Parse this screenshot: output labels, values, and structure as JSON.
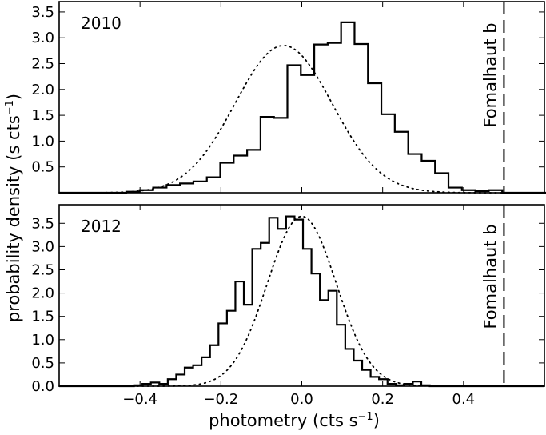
{
  "chart_data": {
    "type": "histogram",
    "ylabel": "probability density (s cts",
    "ylabel_sup": "−1",
    "ylabel_end": ")",
    "xlabel": "photometry (cts s",
    "xlabel_sup": "−1",
    "xlabel_end": ")",
    "xlim": [
      -0.6,
      0.6
    ],
    "xticks": [
      -0.4,
      -0.2,
      0.0,
      0.2,
      0.4
    ],
    "xtick_labels": [
      "−0.4",
      "−0.2",
      "0.0",
      "0.2",
      "0.4"
    ],
    "panels": [
      {
        "label": "2010",
        "ylim": [
          0,
          3.7
        ],
        "yticks": [
          0.5,
          1.0,
          1.5,
          2.0,
          2.5,
          3.0,
          3.5
        ],
        "ytick_labels": [
          "0.5",
          "1.0",
          "1.5",
          "2.0",
          "2.5",
          "3.0",
          "3.5"
        ],
        "bin_width": 0.0332,
        "bin_edges_start": -0.6,
        "histogram": [
          0,
          0,
          0,
          0,
          0,
          0.02,
          0.05,
          0.1,
          0.15,
          0.18,
          0.22,
          0.3,
          0.58,
          0.72,
          0.83,
          1.47,
          1.45,
          2.47,
          2.28,
          2.87,
          2.9,
          3.3,
          2.88,
          2.12,
          1.52,
          1.18,
          0.75,
          0.62,
          0.38,
          0.1,
          0.05,
          0.03,
          0.05,
          0,
          0,
          0,
          0
        ],
        "gaussian": {
          "mean": -0.045,
          "sigma": 0.12,
          "peak": 2.85
        },
        "marker": {
          "x": 0.5,
          "label": "Fomalhaut b"
        }
      },
      {
        "label": "2012",
        "ylim": [
          0,
          3.9
        ],
        "yticks": [
          0.0,
          0.5,
          1.0,
          1.5,
          2.0,
          2.5,
          3.0,
          3.5
        ],
        "ytick_labels": [
          "0.0",
          "0.5",
          "1.0",
          "1.5",
          "2.0",
          "2.5",
          "3.0",
          "3.5"
        ],
        "bin_width": 0.0209,
        "bin_edges_start": -0.415,
        "histogram": [
          0.02,
          0.05,
          0.08,
          0.05,
          0.15,
          0.25,
          0.4,
          0.45,
          0.62,
          0.88,
          1.35,
          1.62,
          2.25,
          1.75,
          2.95,
          3.08,
          3.62,
          3.38,
          3.65,
          3.58,
          2.95,
          2.42,
          1.85,
          2.05,
          1.32,
          0.8,
          0.55,
          0.35,
          0.2,
          0.15,
          0.05,
          0.02,
          0.05,
          0.1,
          0.02,
          0
        ],
        "gaussian": {
          "mean": 0.0,
          "sigma": 0.085,
          "peak": 3.65
        },
        "marker": {
          "x": 0.5,
          "label": "Fomalhaut b"
        }
      }
    ]
  }
}
